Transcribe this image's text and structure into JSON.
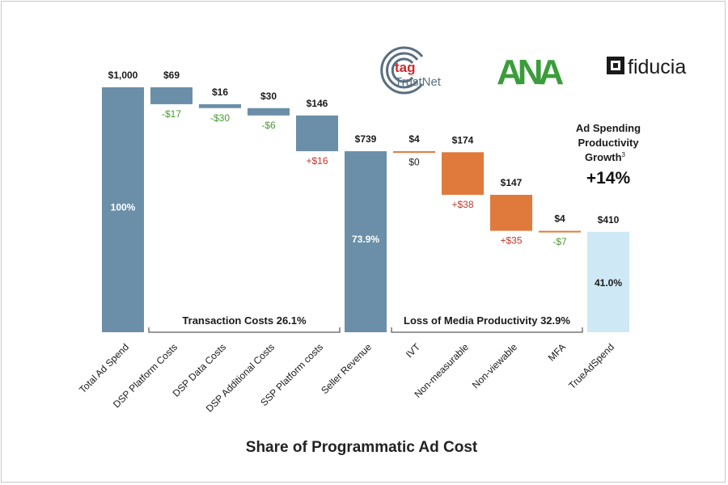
{
  "chart_data": {
    "type": "waterfall",
    "title": "Share of Programmatic Ad Cost",
    "categories": [
      "Total Ad Spend",
      "DSP Platform Costs",
      "DSP Data Costs",
      "DSP Additional Costs",
      "SSP Platform costs",
      "Seller Revenue",
      "IVT",
      "Non-measurable",
      "Non-viewable",
      "MFA",
      "TrueAdSpend"
    ],
    "values": [
      1000,
      69,
      16,
      30,
      146,
      739,
      4,
      174,
      147,
      4,
      410
    ],
    "value_labels": [
      "$1,000",
      "$69",
      "$16",
      "$30",
      "$146",
      "$739",
      "$4",
      "$174",
      "$147",
      "$4",
      "$410"
    ],
    "kinds": [
      "total",
      "decrease",
      "decrease",
      "decrease",
      "decrease",
      "total",
      "decrease",
      "decrease",
      "decrease",
      "decrease",
      "total"
    ],
    "change_labels": [
      "",
      "-$17",
      "-$30",
      "-$6",
      "+$16",
      "",
      "$0",
      "+$38",
      "+$35",
      "-$7",
      ""
    ],
    "change_types": [
      "",
      "negative",
      "negative",
      "negative",
      "positive",
      "",
      "neutral",
      "positive",
      "positive",
      "negative",
      ""
    ],
    "percent_labels": [
      "100%",
      "",
      "",
      "",
      "",
      "73.9%",
      "",
      "",
      "",
      "",
      "41.0%"
    ],
    "ylim": [
      0,
      1000
    ],
    "groups": [
      {
        "label": "Transaction Costs 26.1%",
        "from": 1,
        "to": 4
      },
      {
        "label": "Loss of Media Productivity 32.9%",
        "from": 6,
        "to": 9
      }
    ],
    "colors": {
      "total": "#6b8fa8",
      "cost": "#6b8fa8",
      "media_loss": "#e07a3c",
      "true_ad_spend": "#cfe8f5",
      "positive": "#c0392b",
      "negative": "#4a9a2e",
      "neutral": "#222222"
    }
  },
  "callout": {
    "lines": [
      "Ad Spending",
      "Productivity",
      "Growth"
    ],
    "superscript": "3",
    "value": "+14%"
  },
  "logos": {
    "tag": {
      "word": "tag",
      "sub": "TrustNet",
      "color": "#d6272a",
      "ring_color": "#5a6f80"
    },
    "ana": {
      "text": "ANA",
      "color": "#3b9c3b"
    },
    "fiducia": {
      "text": "fiducia",
      "color": "#1a1a1a"
    }
  }
}
